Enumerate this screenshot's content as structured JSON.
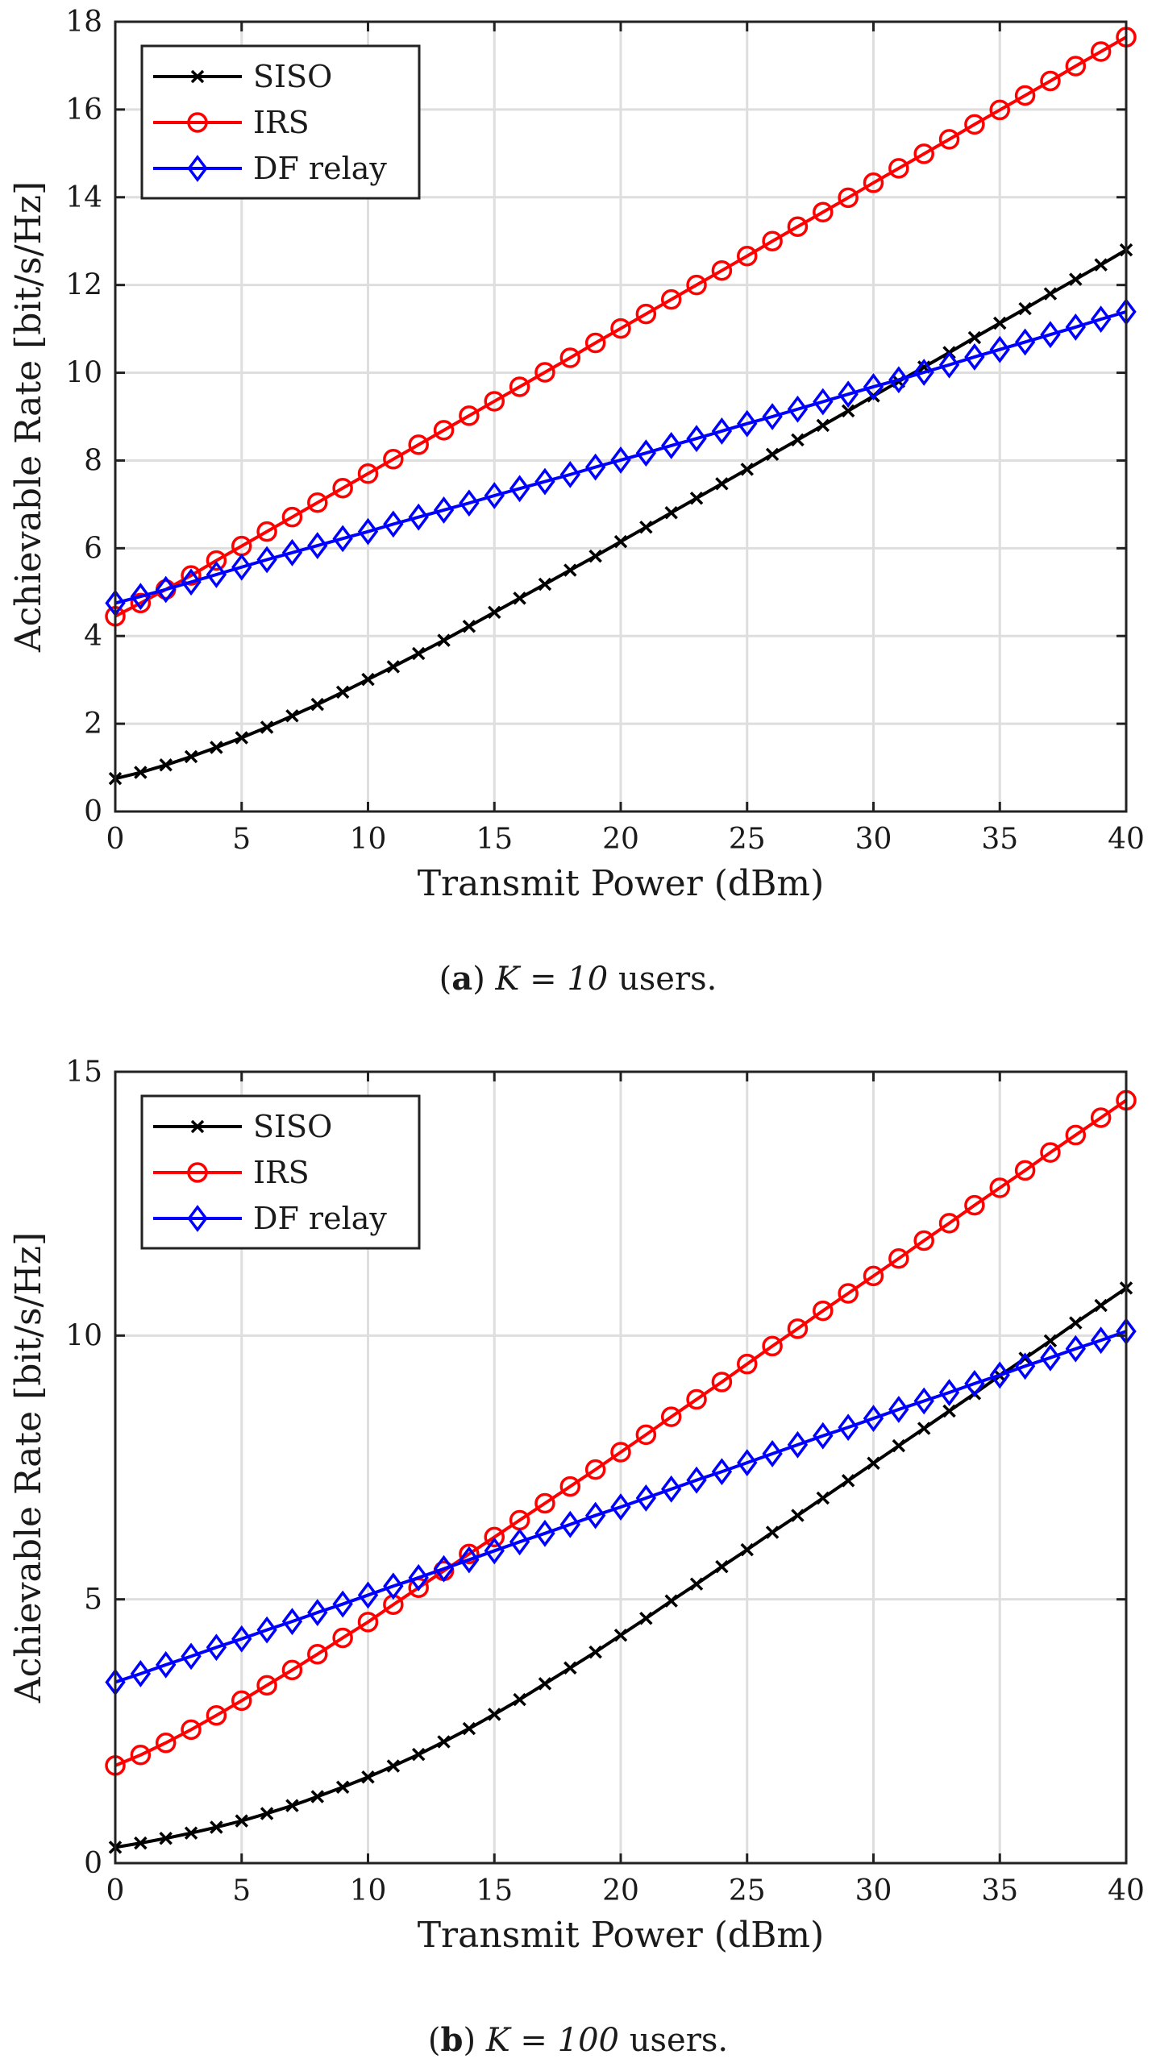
{
  "chart_data": [
    {
      "type": "line",
      "x": [
        0,
        1,
        2,
        3,
        4,
        5,
        6,
        7,
        8,
        9,
        10,
        11,
        12,
        13,
        14,
        15,
        16,
        17,
        18,
        19,
        20,
        21,
        22,
        23,
        24,
        25,
        26,
        27,
        28,
        29,
        30,
        31,
        32,
        33,
        34,
        35,
        36,
        37,
        38,
        39,
        40
      ],
      "xlabel": "Transmit Power (dBm)",
      "ylabel": "Achievable Rate [bit/s/Hz]",
      "xlim": [
        0,
        40
      ],
      "ylim": [
        0,
        18
      ],
      "xticks": [
        0,
        5,
        10,
        15,
        20,
        25,
        30,
        35,
        40
      ],
      "yticks": [
        0,
        2,
        4,
        6,
        8,
        10,
        12,
        14,
        16,
        18
      ],
      "grid": true,
      "legend_position": "top-left",
      "caption": {
        "label": "a",
        "math": "K = 10",
        "text": "users."
      },
      "series": [
        {
          "name": "SISO",
          "color": "#000000",
          "marker": "x",
          "values": [
            0.75,
            0.89,
            1.06,
            1.25,
            1.46,
            1.68,
            1.92,
            2.18,
            2.44,
            2.72,
            3.01,
            3.3,
            3.6,
            3.9,
            4.22,
            4.54,
            4.86,
            5.18,
            5.5,
            5.82,
            6.15,
            6.48,
            6.81,
            7.14,
            7.47,
            7.8,
            8.14,
            8.47,
            8.8,
            9.13,
            9.47,
            9.8,
            10.13,
            10.46,
            10.8,
            11.13,
            11.46,
            11.8,
            12.13,
            12.46,
            12.8
          ]
        },
        {
          "name": "IRS",
          "color": "#ff0000",
          "marker": "o",
          "values": [
            4.45,
            4.75,
            5.06,
            5.38,
            5.72,
            6.05,
            6.38,
            6.71,
            7.04,
            7.37,
            7.7,
            8.03,
            8.36,
            8.69,
            9.02,
            9.35,
            9.68,
            10.01,
            10.34,
            10.68,
            11.01,
            11.34,
            11.67,
            12.0,
            12.33,
            12.66,
            13.0,
            13.33,
            13.66,
            13.99,
            14.33,
            14.66,
            14.99,
            15.32,
            15.66,
            15.99,
            16.32,
            16.65,
            16.99,
            17.32,
            17.65
          ]
        },
        {
          "name": "DF relay",
          "color": "#0000ff",
          "marker": "diamond",
          "values": [
            4.75,
            4.9,
            5.06,
            5.23,
            5.4,
            5.57,
            5.74,
            5.9,
            6.06,
            6.22,
            6.38,
            6.55,
            6.71,
            6.87,
            7.03,
            7.2,
            7.36,
            7.52,
            7.68,
            7.85,
            8.01,
            8.17,
            8.34,
            8.5,
            8.67,
            8.84,
            9.0,
            9.17,
            9.34,
            9.51,
            9.68,
            9.84,
            10.01,
            10.18,
            10.36,
            10.53,
            10.7,
            10.87,
            11.04,
            11.22,
            11.39
          ]
        }
      ]
    },
    {
      "type": "line",
      "x": [
        0,
        1,
        2,
        3,
        4,
        5,
        6,
        7,
        8,
        9,
        10,
        11,
        12,
        13,
        14,
        15,
        16,
        17,
        18,
        19,
        20,
        21,
        22,
        23,
        24,
        25,
        26,
        27,
        28,
        29,
        30,
        31,
        32,
        33,
        34,
        35,
        36,
        37,
        38,
        39,
        40
      ],
      "xlabel": "Transmit Power (dBm)",
      "ylabel": "Achievable Rate [bit/s/Hz]",
      "xlim": [
        0,
        40
      ],
      "ylim": [
        0,
        15
      ],
      "xticks": [
        0,
        5,
        10,
        15,
        20,
        25,
        30,
        35,
        40
      ],
      "yticks": [
        0,
        5,
        10,
        15
      ],
      "grid": true,
      "legend_position": "top-left",
      "caption": {
        "label": "b",
        "math": "K = 100",
        "text": "users."
      },
      "series": [
        {
          "name": "SISO",
          "color": "#000000",
          "marker": "x",
          "values": [
            0.3,
            0.38,
            0.47,
            0.57,
            0.68,
            0.8,
            0.94,
            1.09,
            1.26,
            1.44,
            1.63,
            1.84,
            2.06,
            2.3,
            2.55,
            2.82,
            3.1,
            3.4,
            3.7,
            4.0,
            4.32,
            4.64,
            4.97,
            5.29,
            5.62,
            5.94,
            6.27,
            6.59,
            6.92,
            7.25,
            7.58,
            7.91,
            8.24,
            8.57,
            8.9,
            9.24,
            9.57,
            9.9,
            10.24,
            10.57,
            10.9
          ]
        },
        {
          "name": "IRS",
          "color": "#ff0000",
          "marker": "o",
          "values": [
            1.85,
            2.05,
            2.28,
            2.53,
            2.8,
            3.08,
            3.37,
            3.66,
            3.96,
            4.27,
            4.57,
            4.9,
            5.22,
            5.54,
            5.86,
            6.18,
            6.5,
            6.82,
            7.14,
            7.46,
            7.79,
            8.12,
            8.46,
            8.79,
            9.12,
            9.46,
            9.8,
            10.13,
            10.47,
            10.8,
            11.13,
            11.46,
            11.8,
            12.13,
            12.47,
            12.8,
            13.13,
            13.47,
            13.8,
            14.13,
            14.46
          ]
        },
        {
          "name": "DF relay",
          "color": "#0000ff",
          "marker": "diamond",
          "values": [
            3.43,
            3.59,
            3.76,
            3.92,
            4.09,
            4.25,
            4.42,
            4.58,
            4.75,
            4.91,
            5.08,
            5.25,
            5.41,
            5.58,
            5.75,
            5.92,
            6.09,
            6.25,
            6.42,
            6.59,
            6.75,
            6.92,
            7.09,
            7.26,
            7.42,
            7.59,
            7.76,
            7.93,
            8.1,
            8.26,
            8.43,
            8.6,
            8.76,
            8.92,
            9.09,
            9.25,
            9.42,
            9.58,
            9.75,
            9.91,
            10.08
          ]
        }
      ]
    }
  ]
}
